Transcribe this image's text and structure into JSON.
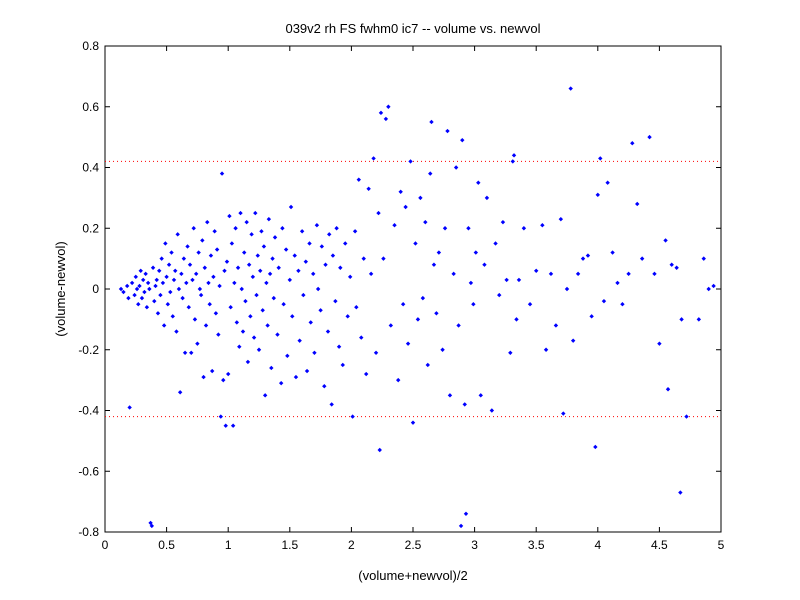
{
  "chart_data": {
    "type": "scatter",
    "title": "039v2 rh FS fwhm0 ic7 -- volume vs. newvol",
    "xlabel": "(volume+newvol)/2",
    "ylabel": "(volume-newvol)",
    "xlim": [
      0,
      5
    ],
    "ylim": [
      -0.8,
      0.8
    ],
    "xticks": [
      "0",
      "0.5",
      "1",
      "1.5",
      "2",
      "2.5",
      "3",
      "3.5",
      "4",
      "4.5",
      "5"
    ],
    "yticks": [
      "-0.8",
      "-0.6",
      "-0.4",
      "-0.2",
      "0",
      "0.2",
      "0.4",
      "0.6",
      "0.8"
    ],
    "grid": false,
    "colors": {
      "points": "#0000ff",
      "reference_lines": "#ff0000",
      "axes": "#000000"
    },
    "reference_lines": [
      0.42,
      -0.42
    ],
    "points": [
      [
        0.13,
        0.0
      ],
      [
        0.15,
        -0.01
      ],
      [
        0.18,
        0.01
      ],
      [
        0.19,
        -0.03
      ],
      [
        0.2,
        -0.39
      ],
      [
        0.22,
        0.02
      ],
      [
        0.24,
        -0.02
      ],
      [
        0.25,
        0.04
      ],
      [
        0.26,
        0.0
      ],
      [
        0.27,
        -0.05
      ],
      [
        0.28,
        0.01
      ],
      [
        0.29,
        0.06
      ],
      [
        0.3,
        -0.03
      ],
      [
        0.31,
        0.03
      ],
      [
        0.32,
        -0.01
      ],
      [
        0.33,
        0.05
      ],
      [
        0.34,
        -0.06
      ],
      [
        0.35,
        0.02
      ],
      [
        0.36,
        0.0
      ],
      [
        0.37,
        -0.77
      ],
      [
        0.38,
        -0.78
      ],
      [
        0.39,
        0.07
      ],
      [
        0.4,
        -0.04
      ],
      [
        0.41,
        0.01
      ],
      [
        0.42,
        0.03
      ],
      [
        0.43,
        -0.08
      ],
      [
        0.44,
        0.06
      ],
      [
        0.45,
        -0.02
      ],
      [
        0.46,
        0.1
      ],
      [
        0.47,
        0.02
      ],
      [
        0.48,
        -0.12
      ],
      [
        0.49,
        0.15
      ],
      [
        0.5,
        0.04
      ],
      [
        0.51,
        -0.05
      ],
      [
        0.52,
        0.08
      ],
      [
        0.53,
        -0.01
      ],
      [
        0.54,
        0.12
      ],
      [
        0.55,
        -0.09
      ],
      [
        0.56,
        0.03
      ],
      [
        0.57,
        0.06
      ],
      [
        0.58,
        -0.14
      ],
      [
        0.59,
        0.18
      ],
      [
        0.6,
        0.0
      ],
      [
        0.61,
        -0.34
      ],
      [
        0.62,
        0.05
      ],
      [
        0.63,
        -0.03
      ],
      [
        0.64,
        0.1
      ],
      [
        0.65,
        -0.21
      ],
      [
        0.66,
        0.02
      ],
      [
        0.67,
        0.14
      ],
      [
        0.68,
        -0.06
      ],
      [
        0.69,
        0.08
      ],
      [
        0.7,
        -0.21
      ],
      [
        0.71,
        0.03
      ],
      [
        0.72,
        0.2
      ],
      [
        0.73,
        -0.1
      ],
      [
        0.74,
        0.05
      ],
      [
        0.75,
        -0.18
      ],
      [
        0.76,
        0.12
      ],
      [
        0.77,
        0.0
      ],
      [
        0.78,
        -0.02
      ],
      [
        0.79,
        0.16
      ],
      [
        0.8,
        -0.29
      ],
      [
        0.81,
        0.07
      ],
      [
        0.82,
        -0.12
      ],
      [
        0.83,
        0.22
      ],
      [
        0.84,
        0.02
      ],
      [
        0.85,
        -0.05
      ],
      [
        0.86,
        0.11
      ],
      [
        0.87,
        -0.27
      ],
      [
        0.88,
        0.04
      ],
      [
        0.89,
        0.19
      ],
      [
        0.9,
        -0.08
      ],
      [
        0.91,
        0.13
      ],
      [
        0.92,
        -0.15
      ],
      [
        0.93,
        0.01
      ],
      [
        0.94,
        -0.42
      ],
      [
        0.95,
        0.38
      ],
      [
        0.96,
        -0.3
      ],
      [
        0.97,
        0.06
      ],
      [
        0.98,
        -0.45
      ],
      [
        0.99,
        0.09
      ],
      [
        1.0,
        -0.28
      ],
      [
        1.01,
        0.24
      ],
      [
        1.02,
        -0.06
      ],
      [
        1.03,
        0.15
      ],
      [
        1.04,
        -0.45
      ],
      [
        1.05,
        0.02
      ],
      [
        1.06,
        0.2
      ],
      [
        1.07,
        -0.11
      ],
      [
        1.08,
        0.07
      ],
      [
        1.09,
        -0.19
      ],
      [
        1.1,
        0.25
      ],
      [
        1.11,
        0.0
      ],
      [
        1.12,
        -0.14
      ],
      [
        1.13,
        0.12
      ],
      [
        1.14,
        -0.04
      ],
      [
        1.15,
        0.22
      ],
      [
        1.16,
        -0.24
      ],
      [
        1.17,
        0.08
      ],
      [
        1.18,
        -0.09
      ],
      [
        1.19,
        0.18
      ],
      [
        1.2,
        0.04
      ],
      [
        1.21,
        -0.16
      ],
      [
        1.22,
        0.25
      ],
      [
        1.23,
        -0.02
      ],
      [
        1.24,
        0.11
      ],
      [
        1.25,
        -0.2
      ],
      [
        1.26,
        0.06
      ],
      [
        1.27,
        0.19
      ],
      [
        1.28,
        -0.07
      ],
      [
        1.29,
        0.14
      ],
      [
        1.3,
        -0.35
      ],
      [
        1.31,
        0.02
      ],
      [
        1.32,
        -0.12
      ],
      [
        1.33,
        0.23
      ],
      [
        1.34,
        0.05
      ],
      [
        1.35,
        -0.26
      ],
      [
        1.36,
        0.1
      ],
      [
        1.37,
        -0.03
      ],
      [
        1.38,
        0.17
      ],
      [
        1.4,
        -0.15
      ],
      [
        1.41,
        0.07
      ],
      [
        1.43,
        -0.31
      ],
      [
        1.44,
        0.2
      ],
      [
        1.45,
        -0.05
      ],
      [
        1.47,
        0.13
      ],
      [
        1.48,
        -0.22
      ],
      [
        1.5,
        0.03
      ],
      [
        1.51,
        0.27
      ],
      [
        1.52,
        -0.09
      ],
      [
        1.54,
        0.11
      ],
      [
        1.55,
        -0.29
      ],
      [
        1.57,
        0.06
      ],
      [
        1.58,
        -0.17
      ],
      [
        1.6,
        0.19
      ],
      [
        1.61,
        -0.02
      ],
      [
        1.63,
        0.09
      ],
      [
        1.64,
        -0.27
      ],
      [
        1.66,
        0.15
      ],
      [
        1.67,
        -0.11
      ],
      [
        1.69,
        0.05
      ],
      [
        1.7,
        -0.21
      ],
      [
        1.72,
        0.21
      ],
      [
        1.73,
        0.0
      ],
      [
        1.75,
        -0.07
      ],
      [
        1.76,
        0.14
      ],
      [
        1.78,
        -0.32
      ],
      [
        1.79,
        0.08
      ],
      [
        1.81,
        -0.14
      ],
      [
        1.82,
        0.18
      ],
      [
        1.84,
        -0.38
      ],
      [
        1.85,
        0.11
      ],
      [
        1.87,
        -0.04
      ],
      [
        1.88,
        0.2
      ],
      [
        1.9,
        -0.19
      ],
      [
        1.91,
        0.07
      ],
      [
        1.93,
        -0.25
      ],
      [
        1.95,
        0.15
      ],
      [
        1.97,
        -0.09
      ],
      [
        1.99,
        0.04
      ],
      [
        2.01,
        -0.42
      ],
      [
        2.03,
        0.19
      ],
      [
        2.04,
        -0.06
      ],
      [
        2.06,
        0.36
      ],
      [
        2.08,
        -0.16
      ],
      [
        2.1,
        0.1
      ],
      [
        2.12,
        -0.28
      ],
      [
        2.14,
        0.33
      ],
      [
        2.16,
        0.05
      ],
      [
        2.18,
        0.43
      ],
      [
        2.2,
        -0.21
      ],
      [
        2.22,
        0.25
      ],
      [
        2.23,
        -0.53
      ],
      [
        2.24,
        0.58
      ],
      [
        2.26,
        0.1
      ],
      [
        2.28,
        0.56
      ],
      [
        2.3,
        0.6
      ],
      [
        2.32,
        -0.12
      ],
      [
        2.35,
        0.21
      ],
      [
        2.38,
        -0.3
      ],
      [
        2.4,
        0.32
      ],
      [
        2.42,
        -0.05
      ],
      [
        2.44,
        0.27
      ],
      [
        2.46,
        -0.18
      ],
      [
        2.48,
        0.42
      ],
      [
        2.5,
        -0.44
      ],
      [
        2.52,
        0.15
      ],
      [
        2.54,
        -0.1
      ],
      [
        2.56,
        0.3
      ],
      [
        2.58,
        -0.03
      ],
      [
        2.6,
        0.22
      ],
      [
        2.62,
        -0.25
      ],
      [
        2.64,
        0.38
      ],
      [
        2.65,
        0.55
      ],
      [
        2.67,
        0.08
      ],
      [
        2.69,
        -0.08
      ],
      [
        2.71,
        0.12
      ],
      [
        2.74,
        -0.2
      ],
      [
        2.76,
        0.2
      ],
      [
        2.78,
        0.52
      ],
      [
        2.8,
        -0.35
      ],
      [
        2.83,
        0.05
      ],
      [
        2.85,
        0.4
      ],
      [
        2.87,
        -0.12
      ],
      [
        2.89,
        -0.78
      ],
      [
        2.9,
        0.49
      ],
      [
        2.92,
        -0.38
      ],
      [
        2.93,
        -0.74
      ],
      [
        2.95,
        0.2
      ],
      [
        2.97,
        0.02
      ],
      [
        2.99,
        -0.05
      ],
      [
        3.01,
        0.12
      ],
      [
        3.03,
        0.35
      ],
      [
        3.05,
        -0.35
      ],
      [
        3.08,
        0.08
      ],
      [
        3.1,
        0.3
      ],
      [
        3.14,
        -0.4
      ],
      [
        3.17,
        0.15
      ],
      [
        3.2,
        -0.02
      ],
      [
        3.23,
        0.22
      ],
      [
        3.26,
        0.03
      ],
      [
        3.29,
        -0.21
      ],
      [
        3.31,
        0.42
      ],
      [
        3.32,
        0.44
      ],
      [
        3.34,
        -0.1
      ],
      [
        3.36,
        0.03
      ],
      [
        3.4,
        0.2
      ],
      [
        3.45,
        -0.05
      ],
      [
        3.5,
        0.06
      ],
      [
        3.55,
        0.21
      ],
      [
        3.58,
        -0.2
      ],
      [
        3.62,
        0.05
      ],
      [
        3.66,
        -0.12
      ],
      [
        3.7,
        0.23
      ],
      [
        3.72,
        -0.41
      ],
      [
        3.75,
        0.0
      ],
      [
        3.78,
        0.66
      ],
      [
        3.8,
        -0.17
      ],
      [
        3.84,
        0.05
      ],
      [
        3.88,
        0.1
      ],
      [
        3.92,
        0.11
      ],
      [
        3.95,
        -0.09
      ],
      [
        3.98,
        -0.52
      ],
      [
        4.0,
        0.31
      ],
      [
        4.02,
        0.43
      ],
      [
        4.05,
        -0.04
      ],
      [
        4.08,
        0.35
      ],
      [
        4.12,
        0.12
      ],
      [
        4.16,
        0.02
      ],
      [
        4.2,
        -0.05
      ],
      [
        4.25,
        0.05
      ],
      [
        4.28,
        0.48
      ],
      [
        4.32,
        0.28
      ],
      [
        4.36,
        0.1
      ],
      [
        4.42,
        0.5
      ],
      [
        4.46,
        0.05
      ],
      [
        4.5,
        -0.18
      ],
      [
        4.55,
        0.16
      ],
      [
        4.57,
        -0.33
      ],
      [
        4.6,
        0.08
      ],
      [
        4.64,
        0.07
      ],
      [
        4.67,
        -0.67
      ],
      [
        4.68,
        -0.1
      ],
      [
        4.72,
        -0.42
      ],
      [
        4.82,
        -0.1
      ],
      [
        4.86,
        0.1
      ],
      [
        4.9,
        0.0
      ],
      [
        4.94,
        0.01
      ]
    ]
  }
}
